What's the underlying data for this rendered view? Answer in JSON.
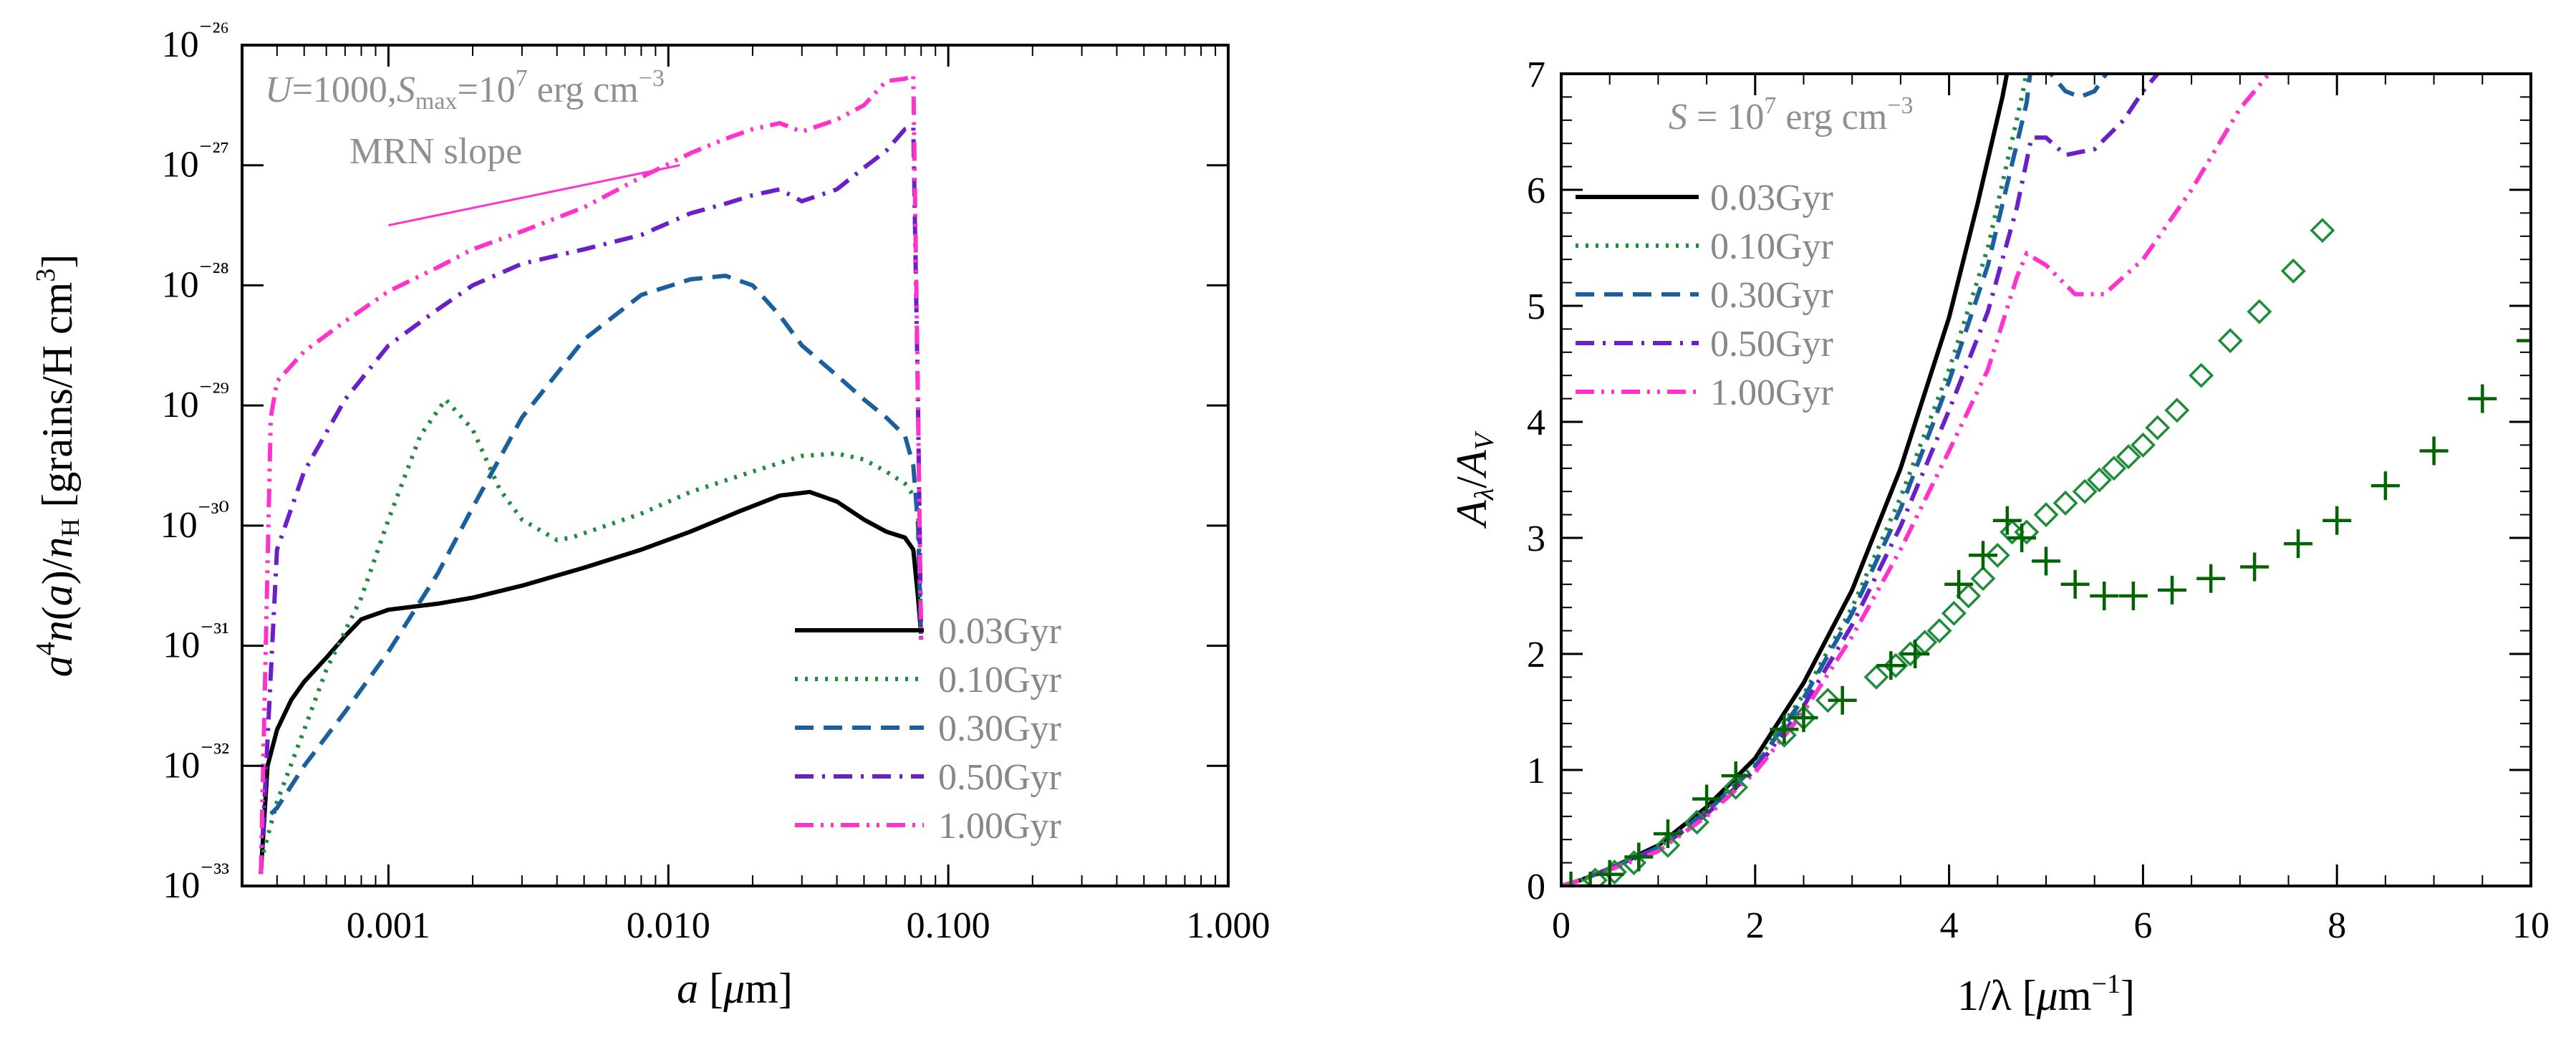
{
  "chart_data": [
    {
      "type": "line",
      "id": "size-distribution",
      "xscale": "log",
      "yscale": "log",
      "xlim": [
        0.0003,
        1.0
      ],
      "ylim": [
        1e-33,
        1e-26
      ],
      "xlabel": "a [μm]",
      "ylabel": "a⁴n(a)/n_H [grains/H cm³]",
      "xticks": [
        0.001,
        0.01,
        0.1,
        1.0
      ],
      "xtick_labels": [
        "0.001",
        "0.010",
        "0.100",
        "1.000"
      ],
      "yticks": [
        -33,
        -32,
        -31,
        -30,
        -29,
        -28,
        -27,
        -26
      ],
      "ytick_labels": [
        "10⁻³³",
        "10⁻³²",
        "10⁻³¹",
        "10⁻³⁰",
        "10⁻²⁹",
        "10⁻²⁸",
        "10⁻²⁷",
        "10⁻²⁶"
      ],
      "annotation": "U=1000, S_max=10⁷ erg cm⁻³",
      "annotation_parts": {
        "u": "U",
        "u_val": "=1000,",
        "s": "S",
        "s_sub": "max",
        "s_eq": "=10",
        "s_exp": "7",
        "unit": " erg cm",
        "unit_exp": "−3"
      },
      "reference_line": {
        "label": "MRN slope",
        "x": [
          0.001,
          0.011
        ],
        "log_y": [
          -27.5,
          -27.0
        ],
        "color": "#ff33cc"
      },
      "legend_position": "bottom-right",
      "series": [
        {
          "name": "0.03Gyr",
          "color": "#000000",
          "dash": "solid",
          "x": [
            0.00035,
            0.00037,
            0.0004,
            0.00045,
            0.0005,
            0.0006,
            0.0007,
            0.0008,
            0.001,
            0.0015,
            0.002,
            0.003,
            0.005,
            0.008,
            0.012,
            0.018,
            0.025,
            0.032,
            0.04,
            0.05,
            0.06,
            0.07,
            0.075,
            0.078,
            0.08
          ],
          "log_y": [
            -32.9,
            -32.0,
            -31.7,
            -31.45,
            -31.3,
            -31.1,
            -30.92,
            -30.78,
            -30.7,
            -30.65,
            -30.6,
            -30.5,
            -30.35,
            -30.2,
            -30.05,
            -29.88,
            -29.75,
            -29.72,
            -29.8,
            -29.95,
            -30.05,
            -30.1,
            -30.2,
            -30.6,
            -30.9
          ]
        },
        {
          "name": "0.10Gyr",
          "color": "#1e8c3a",
          "dash": "dotted",
          "x": [
            0.00035,
            0.0004,
            0.0005,
            0.0006,
            0.0008,
            0.001,
            0.0013,
            0.0016,
            0.002,
            0.0025,
            0.003,
            0.004,
            0.0045,
            0.006,
            0.008,
            0.012,
            0.02,
            0.03,
            0.04,
            0.05,
            0.06,
            0.07,
            0.078,
            0.08
          ],
          "log_y": [
            -32.8,
            -32.3,
            -31.7,
            -31.2,
            -30.6,
            -29.95,
            -29.25,
            -28.95,
            -29.2,
            -29.7,
            -29.95,
            -30.12,
            -30.1,
            -30.0,
            -29.9,
            -29.72,
            -29.55,
            -29.42,
            -29.4,
            -29.45,
            -29.55,
            -29.65,
            -29.8,
            -30.9
          ]
        },
        {
          "name": "0.30Gyr",
          "color": "#1a5f9e",
          "dash": "dashed",
          "x": [
            0.00038,
            0.0004,
            0.0005,
            0.0007,
            0.001,
            0.0015,
            0.002,
            0.003,
            0.005,
            0.008,
            0.012,
            0.016,
            0.02,
            0.025,
            0.03,
            0.04,
            0.05,
            0.06,
            0.07,
            0.075,
            0.078,
            0.08
          ],
          "log_y": [
            -32.4,
            -32.35,
            -32.0,
            -31.55,
            -31.05,
            -30.4,
            -29.85,
            -29.1,
            -28.45,
            -28.08,
            -27.95,
            -27.92,
            -28.0,
            -28.25,
            -28.5,
            -28.75,
            -28.95,
            -29.1,
            -29.25,
            -29.5,
            -30.0,
            -30.95
          ]
        },
        {
          "name": "0.50Gyr",
          "color": "#6a1fc9",
          "dash": "dashdot",
          "x": [
            0.00035,
            0.0004,
            0.0005,
            0.0007,
            0.001,
            0.0015,
            0.002,
            0.003,
            0.005,
            0.008,
            0.012,
            0.016,
            0.02,
            0.025,
            0.03,
            0.04,
            0.05,
            0.06,
            0.07,
            0.075,
            0.078,
            0.08
          ],
          "log_y": [
            -32.9,
            -30.2,
            -29.55,
            -28.95,
            -28.5,
            -28.2,
            -28.0,
            -27.82,
            -27.7,
            -27.58,
            -27.4,
            -27.32,
            -27.25,
            -27.2,
            -27.3,
            -27.2,
            -27.02,
            -26.88,
            -26.7,
            -26.68,
            -29.0,
            -30.95
          ]
        },
        {
          "name": "1.00Gyr",
          "color": "#ff33cc",
          "dash": "dashdotdot",
          "x": [
            0.00035,
            0.00038,
            0.0004,
            0.0005,
            0.0007,
            0.001,
            0.0015,
            0.002,
            0.003,
            0.005,
            0.008,
            0.012,
            0.016,
            0.02,
            0.025,
            0.03,
            0.04,
            0.05,
            0.06,
            0.07,
            0.075,
            0.078,
            0.08
          ],
          "log_y": [
            -32.9,
            -29.1,
            -28.8,
            -28.55,
            -28.3,
            -28.05,
            -27.85,
            -27.7,
            -27.55,
            -27.35,
            -27.1,
            -26.9,
            -26.78,
            -26.7,
            -26.65,
            -26.72,
            -26.62,
            -26.5,
            -26.3,
            -26.28,
            -26.25,
            -29.0,
            -30.95
          ]
        }
      ]
    },
    {
      "type": "line",
      "id": "extinction-curve",
      "xlim": [
        0,
        10
      ],
      "ylim": [
        0,
        7
      ],
      "xlabel": "1/λ [μm⁻¹]",
      "ylabel": "A_λ/A_V",
      "xticks": [
        0,
        2,
        4,
        6,
        8,
        10
      ],
      "xtick_labels": [
        "0",
        "2",
        "4",
        "6",
        "8",
        "10"
      ],
      "yticks": [
        0,
        1,
        2,
        3,
        4,
        5,
        6,
        7
      ],
      "ytick_labels": [
        "0",
        "1",
        "2",
        "3",
        "4",
        "5",
        "6",
        "7"
      ],
      "annotation": "S = 10⁷ erg cm⁻³",
      "annotation_parts": {
        "s": "S",
        "mid": " = 10",
        "exp": "7",
        "unit": " erg cm",
        "unit_exp": "−3"
      },
      "legend_position": "top-left",
      "series": [
        {
          "name": "0.03Gyr",
          "color": "#000000",
          "dash": "solid",
          "x": [
            0.0,
            0.2,
            0.5,
            1.0,
            1.5,
            2.0,
            2.5,
            3.0,
            3.5,
            4.0,
            4.3,
            4.55,
            4.62
          ],
          "y": [
            0.0,
            0.05,
            0.15,
            0.35,
            0.68,
            1.1,
            1.75,
            2.55,
            3.6,
            4.9,
            5.9,
            6.8,
            7.1
          ]
        },
        {
          "name": "0.10Gyr",
          "color": "#1e8c3a",
          "dash": "dotted",
          "x": [
            0.0,
            0.2,
            0.5,
            1.0,
            1.5,
            2.0,
            2.5,
            3.0,
            3.5,
            4.0,
            4.4,
            4.75,
            4.82
          ],
          "y": [
            0.0,
            0.05,
            0.15,
            0.33,
            0.65,
            1.05,
            1.65,
            2.4,
            3.35,
            4.45,
            5.5,
            6.8,
            7.1
          ]
        },
        {
          "name": "0.30Gyr",
          "color": "#1a5f9e",
          "dash": "dashed",
          "x": [
            0.0,
            0.2,
            0.5,
            1.0,
            1.5,
            2.0,
            2.5,
            3.0,
            3.5,
            4.0,
            4.4,
            4.8,
            4.85,
            4.9,
            5.0,
            5.1,
            5.2,
            5.35,
            5.5,
            5.7
          ],
          "y": [
            0.0,
            0.05,
            0.15,
            0.33,
            0.64,
            1.03,
            1.62,
            2.35,
            3.25,
            4.35,
            5.35,
            6.75,
            7.1,
            7.1,
            7.05,
            6.95,
            6.85,
            6.8,
            6.85,
            7.1
          ]
        },
        {
          "name": "0.50Gyr",
          "color": "#6a1fc9",
          "dash": "dashdot",
          "x": [
            0.0,
            0.2,
            0.5,
            1.0,
            1.5,
            2.0,
            2.5,
            3.0,
            3.5,
            4.0,
            4.4,
            4.7,
            4.85,
            5.0,
            5.2,
            5.5,
            5.8,
            6.0,
            6.25
          ],
          "y": [
            0.0,
            0.05,
            0.15,
            0.32,
            0.62,
            1.0,
            1.55,
            2.25,
            3.1,
            4.1,
            4.95,
            5.85,
            6.45,
            6.45,
            6.3,
            6.35,
            6.6,
            6.85,
            7.1
          ]
        },
        {
          "name": "1.00Gyr",
          "color": "#ff33cc",
          "dash": "dashdotdot",
          "x": [
            0.0,
            0.2,
            0.5,
            1.0,
            1.5,
            2.0,
            2.5,
            3.0,
            3.5,
            4.0,
            4.4,
            4.7,
            4.8,
            5.0,
            5.3,
            5.6,
            6.0,
            6.5,
            7.0,
            7.3,
            7.5
          ],
          "y": [
            0.0,
            0.05,
            0.14,
            0.3,
            0.6,
            0.98,
            1.5,
            2.15,
            2.9,
            3.75,
            4.45,
            5.25,
            5.45,
            5.35,
            5.1,
            5.1,
            5.4,
            6.0,
            6.7,
            7.0,
            7.1
          ]
        }
      ],
      "observations": [
        {
          "name": "diamonds",
          "marker": "diamond",
          "color": "#1e8c3a",
          "x": [
            0.35,
            0.55,
            0.75,
            1.1,
            1.4,
            1.8,
            2.3,
            2.5,
            2.75,
            3.25,
            3.45,
            3.6,
            3.75,
            3.9,
            4.05,
            4.2,
            4.35,
            4.5,
            4.65,
            4.8,
            5.0,
            5.2,
            5.4,
            5.55,
            5.7,
            5.85,
            6.0,
            6.15,
            6.35,
            6.6,
            6.9,
            7.2,
            7.55,
            7.85
          ],
          "y": [
            0.05,
            0.12,
            0.2,
            0.35,
            0.55,
            0.85,
            1.3,
            1.45,
            1.6,
            1.8,
            1.9,
            2.0,
            2.1,
            2.2,
            2.35,
            2.5,
            2.65,
            2.85,
            3.05,
            3.05,
            3.2,
            3.3,
            3.4,
            3.5,
            3.6,
            3.7,
            3.8,
            3.95,
            4.1,
            4.4,
            4.7,
            4.95,
            5.3,
            5.65
          ]
        },
        {
          "name": "crosses",
          "marker": "cross",
          "color": "#006400",
          "x": [
            0.1,
            0.3,
            0.5,
            0.8,
            1.1,
            1.5,
            1.8,
            2.3,
            2.5,
            2.9,
            3.4,
            3.65,
            4.1,
            4.35,
            4.6,
            4.75,
            5.0,
            5.3,
            5.6,
            5.9,
            6.3,
            6.7,
            7.15,
            7.6,
            8.0,
            8.5,
            9.0,
            9.5,
            10.0
          ],
          "y": [
            0.0,
            0.0,
            0.1,
            0.25,
            0.45,
            0.75,
            0.95,
            1.35,
            1.45,
            1.6,
            1.9,
            2.0,
            2.6,
            2.85,
            3.15,
            3.0,
            2.8,
            2.6,
            2.5,
            2.5,
            2.55,
            2.65,
            2.75,
            2.95,
            3.15,
            3.45,
            3.75,
            4.2,
            4.7
          ]
        }
      ]
    }
  ]
}
